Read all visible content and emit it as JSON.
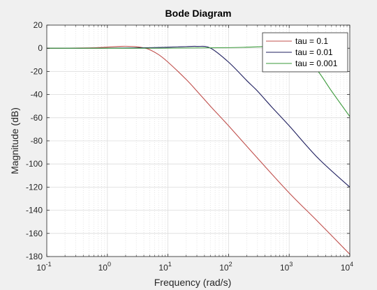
{
  "chart_data": {
    "type": "line",
    "title": "Bode Diagram",
    "xlabel": "Frequency  (rad/s)",
    "ylabel": "Magnitude (dB)",
    "xscale": "log",
    "xlim": [
      0.1,
      10000
    ],
    "ylim": [
      -180,
      20
    ],
    "grid": true,
    "minor_grid": true,
    "legend_position": "top-right",
    "x_ticks": [
      {
        "value": 0.1,
        "base": "10",
        "exp": "-1"
      },
      {
        "value": 1,
        "base": "10",
        "exp": "0"
      },
      {
        "value": 10,
        "base": "10",
        "exp": "1"
      },
      {
        "value": 100,
        "base": "10",
        "exp": "2"
      },
      {
        "value": 1000,
        "base": "10",
        "exp": "3"
      },
      {
        "value": 10000,
        "base": "10",
        "exp": "4"
      }
    ],
    "y_ticks": [
      20,
      0,
      -20,
      -40,
      -60,
      -80,
      -100,
      -120,
      -140,
      -160,
      -180
    ],
    "series": [
      {
        "name": "tau = 0.1",
        "color": "#c0504d",
        "x": [
          0.1,
          0.5,
          1,
          1.5,
          2,
          3,
          4,
          5,
          7,
          10,
          20,
          30,
          50,
          100,
          300,
          1000,
          3000,
          10000
        ],
        "y": [
          0,
          0.3,
          1.0,
          1.5,
          1.7,
          1.3,
          0.3,
          -1.2,
          -5.5,
          -12,
          -27,
          -37,
          -50,
          -67,
          -95,
          -125,
          -150,
          -178
        ]
      },
      {
        "name": "tau = 0.01",
        "color": "#1f1f5f",
        "x": [
          0.1,
          1,
          5,
          10,
          15,
          20,
          30,
          50,
          100,
          200,
          300,
          500,
          1000,
          3000,
          10000
        ],
        "y": [
          0,
          0.1,
          0.5,
          0.9,
          1.2,
          1.4,
          1.6,
          0.2,
          -12,
          -28,
          -37,
          -50,
          -67,
          -95,
          -120
        ]
      },
      {
        "name": "tau = 0.001",
        "color": "#3a9a3a",
        "x": [
          0.1,
          10,
          100,
          200,
          300,
          500,
          700,
          1000,
          2000,
          3000,
          5000,
          10000
        ],
        "y": [
          0,
          0.05,
          0.5,
          0.9,
          1.2,
          1.6,
          1.3,
          0.1,
          -12,
          -20,
          -37,
          -59
        ]
      }
    ]
  }
}
